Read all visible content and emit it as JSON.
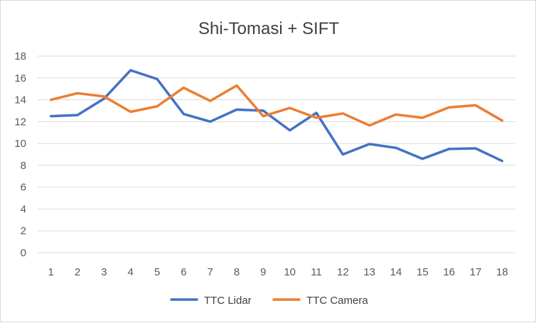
{
  "chart_data": {
    "type": "line",
    "title": "Shi-Tomasi + SIFT",
    "xlabel": "",
    "ylabel": "",
    "categories": [
      "1",
      "2",
      "3",
      "4",
      "5",
      "6",
      "7",
      "8",
      "9",
      "10",
      "11",
      "12",
      "13",
      "14",
      "15",
      "16",
      "17",
      "18"
    ],
    "ylim": [
      0,
      18
    ],
    "yticks": [
      0,
      2,
      4,
      6,
      8,
      10,
      12,
      14,
      16,
      18
    ],
    "grid": true,
    "legend_position": "bottom",
    "series": [
      {
        "name": "TTC Lidar",
        "color": "#4472c4",
        "values": [
          12.5,
          12.6,
          14.1,
          16.7,
          15.9,
          12.7,
          12.0,
          13.1,
          13.0,
          11.2,
          12.8,
          9.0,
          9.95,
          9.6,
          8.6,
          9.5,
          9.55,
          8.4
        ]
      },
      {
        "name": "TTC Camera",
        "color": "#ed7d31",
        "values": [
          14.0,
          14.6,
          14.3,
          12.9,
          13.4,
          15.1,
          13.9,
          15.3,
          12.5,
          13.25,
          12.35,
          12.75,
          11.65,
          12.65,
          12.35,
          13.3,
          13.5,
          12.1
        ]
      }
    ]
  }
}
